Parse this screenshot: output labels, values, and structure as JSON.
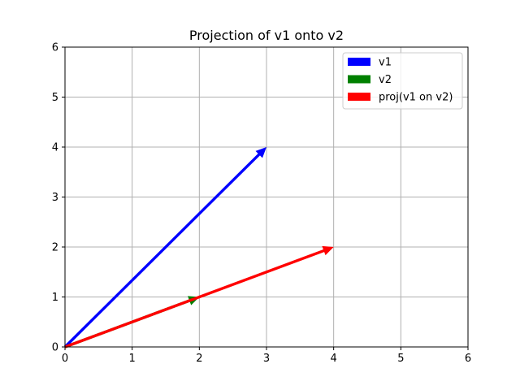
{
  "chart_data": {
    "type": "vector",
    "title": "Projection of v1 onto v2",
    "xlabel": "",
    "ylabel": "",
    "xlim": [
      0,
      6
    ],
    "ylim": [
      0,
      6
    ],
    "xticks": [
      "0",
      "1",
      "2",
      "3",
      "4",
      "5",
      "6"
    ],
    "yticks": [
      "0",
      "1",
      "2",
      "3",
      "4",
      "5",
      "6"
    ],
    "grid": true,
    "legend_position": "top-right",
    "series": [
      {
        "name": "v1",
        "color": "#0000ff",
        "start": [
          0,
          0
        ],
        "end": [
          3,
          4
        ]
      },
      {
        "name": "v2",
        "color": "#008000",
        "start": [
          0,
          0
        ],
        "end": [
          2,
          1
        ]
      },
      {
        "name": "proj(v1 on v2)",
        "color": "#ff0000",
        "start": [
          0,
          0
        ],
        "end": [
          4,
          2
        ]
      }
    ]
  }
}
